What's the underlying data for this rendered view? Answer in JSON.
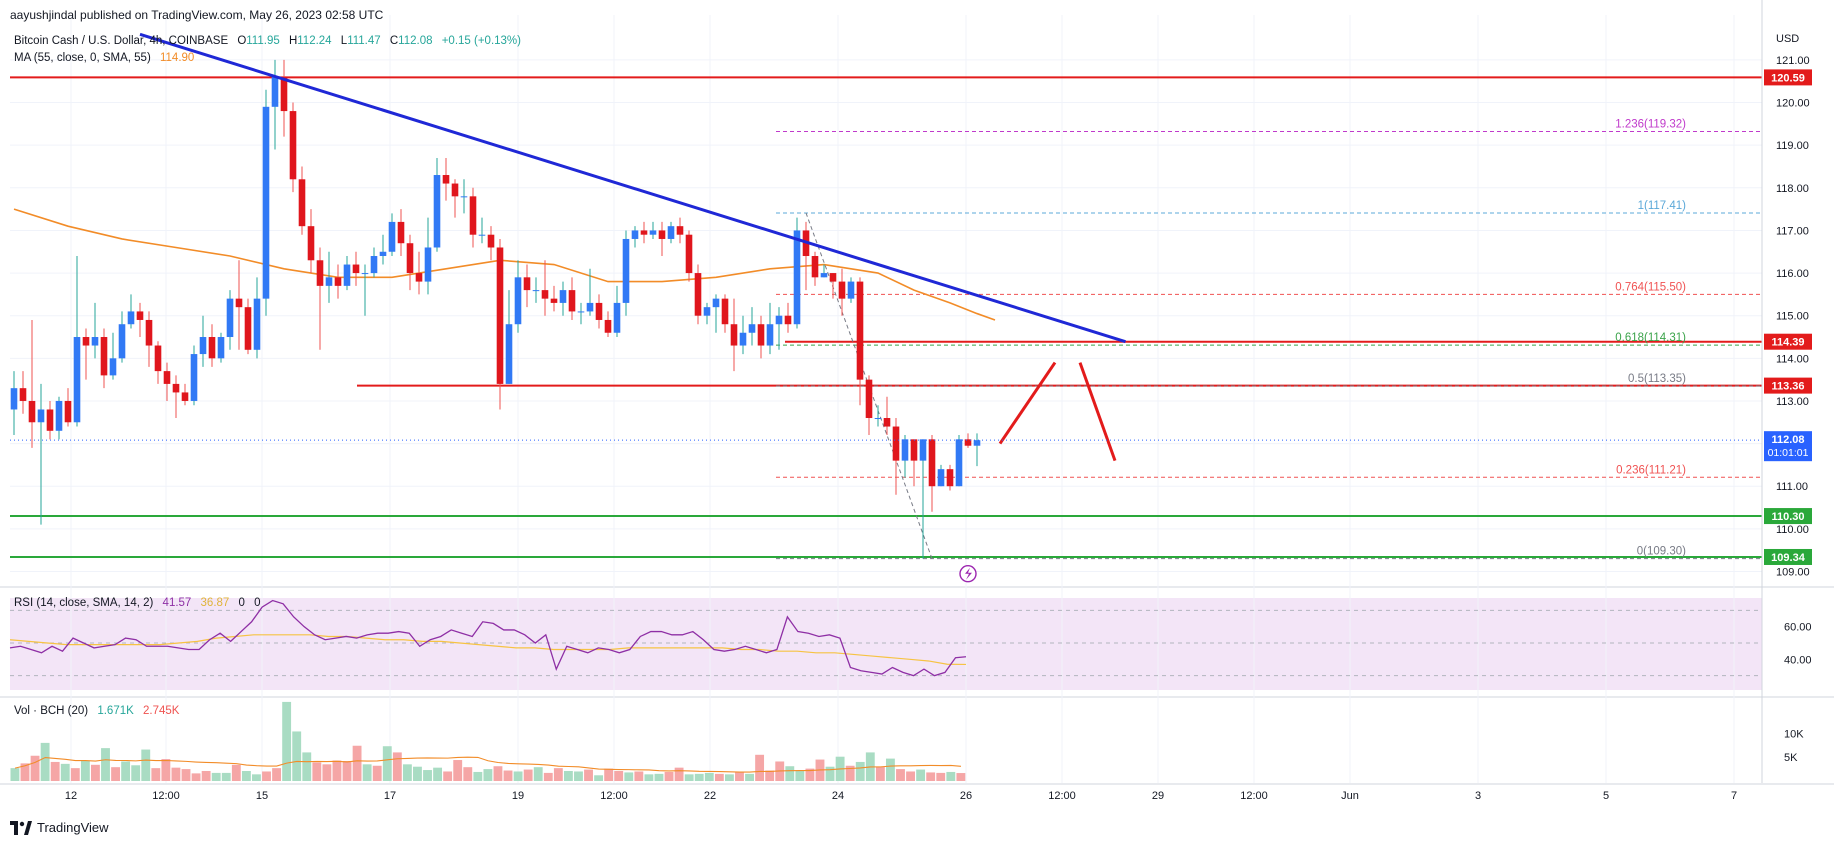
{
  "header": {
    "publisher": "aayushjindal published on TradingView.com, May 26, 2023 02:58 UTC",
    "symbol": "Bitcoin Cash / U.S. Dollar, 4h, COINBASE",
    "o_label": "O",
    "o": "111.95",
    "h_label": "H",
    "h": "112.24",
    "l_label": "L",
    "l": "111.47",
    "c_label": "C",
    "c": "112.08",
    "change": "+0.15 (+0.13%)",
    "ma_label": "MA (55, close, 0, SMA, 55)",
    "ma_value": "114.90"
  },
  "rsi": {
    "label": "RSI (14, close, SMA, 14, 2)",
    "value": "41.57",
    "ma_value": "36.87",
    "z1": "0",
    "z2": "0"
  },
  "volume": {
    "label": "Vol · BCH (20)",
    "value": "1.671K",
    "ma_value": "2.745K"
  },
  "footer": {
    "brand": "TradingView"
  },
  "colors": {
    "up": "#26a69a",
    "down": "#ef5350",
    "trend": "#1f28d6",
    "level_red": "#e31b1b",
    "level_green": "#2aa83a",
    "ma": "#f28c28",
    "rsi": "#8e2fa5",
    "rsi_ma": "#f6c343",
    "fib_red": "#f05252",
    "fib_blue": "#5ba8d8",
    "fib_purple": "#c03acb"
  },
  "chart_data": {
    "type": "candlestick",
    "currency_label": "USD",
    "y_ticks": [
      "121.00",
      "120.00",
      "119.00",
      "118.00",
      "117.00",
      "116.00",
      "115.00",
      "114.00",
      "113.00",
      "112.00",
      "111.00",
      "110.00",
      "109.00"
    ],
    "ylim": [
      108.8,
      121.35
    ],
    "x_ticks": [
      "12",
      "12:00",
      "15",
      "17",
      "19",
      "12:00",
      "22",
      "24",
      "26",
      "12:00",
      "29",
      "12:00",
      "Jun",
      "3",
      "5",
      "7"
    ],
    "price_labels": {
      "res1": "120.59",
      "res2": "114.39",
      "res3": "113.36",
      "last": "112.08",
      "countdown": "01:01:01",
      "sup1": "110.30",
      "sup2": "109.34"
    },
    "horizontal_levels": [
      {
        "name": "resistance-1",
        "value": 120.59,
        "color": "red"
      },
      {
        "name": "resistance-2",
        "value": 114.39,
        "color": "red"
      },
      {
        "name": "resistance-3",
        "value": 113.36,
        "color": "red"
      },
      {
        "name": "support-1",
        "value": 110.3,
        "color": "green"
      },
      {
        "name": "support-2",
        "value": 109.34,
        "color": "green"
      }
    ],
    "fib_levels": [
      {
        "label": "1.236(119.32)",
        "value": 119.32,
        "style": "purple"
      },
      {
        "label": "1(117.41)",
        "value": 117.41,
        "style": "blue"
      },
      {
        "label": "0.764(115.50)",
        "value": 115.5,
        "style": "red"
      },
      {
        "label": "0.618(114.31)",
        "value": 114.31,
        "style": "green"
      },
      {
        "label": "0.5(113.35)",
        "value": 113.35,
        "style": "gray"
      },
      {
        "label": "0.236(111.21)",
        "value": 111.21,
        "style": "red"
      },
      {
        "label": "0(109.30)",
        "value": 109.3,
        "style": "gray"
      }
    ],
    "trendline": {
      "from": [
        0,
        121.6
      ],
      "to": [
        123.5,
        114.39
      ]
    },
    "candles": [
      [
        112.8,
        113.3,
        113.7,
        112.2
      ],
      [
        113.3,
        113.0,
        113.7,
        112.7
      ],
      [
        113.0,
        112.5,
        114.9,
        111.9
      ],
      [
        112.5,
        112.8,
        113.4,
        110.1
      ],
      [
        112.8,
        112.3,
        113.0,
        112.1
      ],
      [
        112.3,
        113.0,
        113.1,
        112.1
      ],
      [
        113.0,
        112.5,
        113.3,
        112.4
      ],
      [
        112.5,
        114.5,
        116.4,
        112.4
      ],
      [
        114.5,
        114.3,
        114.7,
        113.5
      ],
      [
        114.3,
        114.5,
        115.3,
        114.0
      ],
      [
        114.5,
        113.6,
        114.7,
        113.3
      ],
      [
        113.6,
        114.0,
        114.6,
        113.5
      ],
      [
        114.0,
        114.8,
        115.1,
        113.9
      ],
      [
        114.8,
        115.1,
        115.5,
        114.7
      ],
      [
        115.1,
        114.9,
        115.3,
        114.5
      ],
      [
        114.9,
        114.3,
        115.1,
        113.8
      ],
      [
        114.3,
        113.7,
        114.4,
        113.4
      ],
      [
        113.7,
        113.4,
        113.9,
        113.0
      ],
      [
        113.4,
        113.2,
        113.6,
        112.6
      ],
      [
        113.2,
        113.0,
        113.4,
        112.9
      ],
      [
        113.0,
        114.1,
        114.3,
        112.9
      ],
      [
        114.1,
        114.5,
        115.0,
        113.8
      ],
      [
        114.5,
        114.0,
        114.8,
        113.8
      ],
      [
        114.0,
        114.5,
        114.6,
        113.9
      ],
      [
        114.5,
        115.4,
        115.6,
        114.2
      ],
      [
        115.4,
        115.2,
        116.3,
        114.2
      ],
      [
        115.2,
        114.2,
        115.4,
        114.1
      ],
      [
        114.2,
        115.4,
        115.9,
        114.0
      ],
      [
        115.4,
        119.9,
        120.3,
        115.0
      ],
      [
        119.9,
        120.6,
        121.0,
        118.9
      ],
      [
        120.6,
        119.8,
        121.0,
        119.2
      ],
      [
        119.8,
        118.2,
        120.0,
        117.9
      ],
      [
        118.2,
        117.1,
        118.5,
        116.9
      ],
      [
        117.1,
        116.3,
        117.5,
        116.0
      ],
      [
        116.3,
        115.7,
        116.6,
        114.2
      ],
      [
        115.7,
        115.9,
        116.5,
        115.3
      ],
      [
        115.9,
        115.7,
        116.2,
        115.4
      ],
      [
        115.7,
        116.2,
        116.4,
        115.6
      ],
      [
        116.2,
        116.0,
        116.5,
        115.7
      ],
      [
        116.0,
        116.0,
        116.2,
        115.0
      ],
      [
        116.0,
        116.4,
        116.6,
        115.9
      ],
      [
        116.4,
        116.5,
        116.9,
        116.2
      ],
      [
        116.5,
        117.2,
        117.4,
        116.4
      ],
      [
        117.2,
        116.7,
        117.5,
        116.4
      ],
      [
        116.7,
        116.0,
        116.9,
        115.6
      ],
      [
        116.0,
        115.8,
        116.5,
        115.5
      ],
      [
        115.8,
        116.6,
        117.3,
        115.5
      ],
      [
        116.6,
        118.3,
        118.7,
        116.5
      ],
      [
        118.3,
        118.1,
        118.7,
        117.7
      ],
      [
        118.1,
        117.8,
        118.2,
        117.3
      ],
      [
        117.8,
        117.8,
        118.2,
        117.4
      ],
      [
        117.8,
        116.9,
        118.0,
        116.6
      ],
      [
        116.9,
        116.9,
        117.3,
        116.7
      ],
      [
        116.9,
        116.6,
        117.1,
        116.3
      ],
      [
        116.6,
        113.4,
        116.8,
        112.8
      ],
      [
        113.4,
        114.8,
        115.6,
        113.4
      ],
      [
        114.8,
        115.9,
        116.3,
        114.6
      ],
      [
        115.9,
        115.6,
        116.2,
        115.2
      ],
      [
        115.6,
        115.6,
        115.9,
        115.3
      ],
      [
        115.6,
        115.4,
        116.3,
        115.0
      ],
      [
        115.4,
        115.3,
        115.7,
        115.1
      ],
      [
        115.3,
        115.6,
        115.8,
        115.0
      ],
      [
        115.6,
        115.1,
        115.9,
        114.9
      ],
      [
        115.1,
        115.1,
        115.3,
        114.8
      ],
      [
        115.1,
        115.3,
        116.1,
        115.0
      ],
      [
        115.3,
        114.9,
        115.5,
        114.7
      ],
      [
        114.9,
        114.6,
        115.1,
        114.5
      ],
      [
        114.6,
        115.3,
        115.7,
        114.5
      ],
      [
        115.3,
        116.8,
        117.0,
        115.0
      ],
      [
        116.8,
        117.0,
        117.1,
        116.6
      ],
      [
        117.0,
        116.9,
        117.2,
        116.7
      ],
      [
        116.9,
        117.0,
        117.2,
        116.8
      ],
      [
        117.0,
        116.8,
        117.2,
        116.4
      ],
      [
        116.8,
        117.1,
        117.2,
        116.7
      ],
      [
        117.1,
        116.9,
        117.3,
        116.7
      ],
      [
        116.9,
        116.0,
        117.0,
        115.8
      ],
      [
        116.0,
        115.0,
        116.2,
        114.8
      ],
      [
        115.0,
        115.2,
        115.3,
        114.8
      ],
      [
        115.2,
        115.4,
        115.5,
        114.6
      ],
      [
        115.4,
        114.8,
        115.5,
        114.6
      ],
      [
        114.8,
        114.3,
        115.4,
        113.7
      ],
      [
        114.3,
        114.6,
        115.0,
        114.1
      ],
      [
        114.6,
        114.8,
        115.2,
        114.3
      ],
      [
        114.8,
        114.3,
        115.0,
        114.0
      ],
      [
        114.3,
        114.8,
        115.3,
        114.1
      ],
      [
        114.8,
        115.0,
        115.2,
        114.2
      ],
      [
        115.0,
        114.8,
        115.3,
        114.6
      ],
      [
        114.8,
        117.0,
        117.3,
        114.7
      ],
      [
        117.0,
        116.4,
        117.2,
        115.6
      ],
      [
        116.4,
        115.9,
        116.5,
        115.7
      ],
      [
        115.9,
        116.0,
        116.2,
        115.9
      ],
      [
        116.0,
        115.8,
        116.0,
        115.4
      ],
      [
        115.8,
        115.4,
        116.1,
        115.0
      ],
      [
        115.4,
        115.8,
        115.9,
        115.3
      ],
      [
        115.8,
        113.5,
        115.9,
        112.9
      ],
      [
        113.5,
        112.6,
        113.6,
        112.2
      ],
      [
        112.6,
        112.6,
        112.9,
        112.4
      ],
      [
        112.6,
        112.4,
        113.1,
        112.2
      ],
      [
        112.4,
        111.6,
        112.6,
        110.8
      ],
      [
        111.6,
        112.1,
        112.2,
        111.2
      ],
      [
        112.1,
        111.6,
        112.1,
        111.0
      ],
      [
        111.6,
        112.1,
        112.1,
        109.3
      ],
      [
        112.1,
        111.0,
        112.2,
        110.4
      ],
      [
        111.0,
        111.4,
        111.5,
        111.0
      ],
      [
        111.4,
        111.0,
        111.5,
        110.9
      ],
      [
        111.0,
        112.1,
        112.2,
        111.0
      ],
      [
        112.1,
        111.95,
        112.24,
        111.9
      ],
      [
        111.95,
        112.08,
        112.24,
        111.47
      ]
    ],
    "ma55": [
      [
        0,
        117.5
      ],
      [
        6,
        117.1
      ],
      [
        12,
        116.8
      ],
      [
        18,
        116.6
      ],
      [
        24,
        116.4
      ],
      [
        30,
        116.1
      ],
      [
        36,
        115.9
      ],
      [
        42,
        115.9
      ],
      [
        48,
        116.1
      ],
      [
        54,
        116.3
      ],
      [
        60,
        116.2
      ],
      [
        66,
        115.8
      ],
      [
        72,
        115.8
      ],
      [
        78,
        115.9
      ],
      [
        84,
        116.1
      ],
      [
        90,
        116.2
      ],
      [
        96,
        116.0
      ],
      [
        100,
        115.6
      ],
      [
        104,
        115.3
      ],
      [
        107,
        115.05
      ],
      [
        109,
        114.9
      ]
    ],
    "rsi_ylabels": [
      "60.00",
      "40.00"
    ],
    "rsi_range": [
      0,
      100
    ],
    "rsi_values": [
      47,
      48,
      46,
      44,
      48,
      45,
      53,
      50,
      47,
      48,
      49,
      53,
      52,
      48,
      48,
      48,
      47,
      46,
      46,
      52,
      56,
      51,
      57,
      63,
      72,
      76,
      74,
      66,
      60,
      55,
      52,
      53,
      54,
      53,
      55,
      56,
      56,
      57,
      56,
      48,
      52,
      54,
      58,
      56,
      54,
      63,
      62,
      58,
      58,
      55,
      50,
      55,
      34,
      48,
      46,
      44,
      47,
      46,
      44,
      46,
      54,
      57,
      57,
      55,
      55,
      57,
      52,
      46,
      45,
      46,
      48,
      46,
      44,
      46,
      66,
      57,
      56,
      54,
      55,
      53,
      35,
      33,
      32,
      31,
      35,
      32,
      30,
      34,
      30,
      32,
      41,
      41.57
    ],
    "rsi_ma": [
      52,
      51,
      50,
      49,
      49,
      49,
      49,
      49,
      49,
      50,
      51,
      53,
      54,
      55,
      55,
      55,
      55,
      54,
      54,
      53,
      52,
      52,
      51,
      51,
      50,
      49,
      48,
      47,
      47,
      46,
      46,
      46,
      46,
      47,
      47,
      47,
      47,
      47,
      47,
      46,
      46,
      45,
      45,
      44,
      44,
      43,
      42,
      41,
      40,
      39,
      37,
      36.87
    ],
    "vol_ylabels": [
      "10K",
      "5K"
    ],
    "vol_max": 17000,
    "volumes": [
      2.7,
      3.7,
      5.3,
      8.0,
      4.0,
      3.6,
      2.7,
      4.3,
      3.4,
      6.9,
      2.9,
      4.1,
      3.3,
      6.6,
      2.7,
      4.6,
      2.8,
      2.5,
      1.6,
      2.1,
      1.7,
      1.7,
      3.4,
      2.1,
      1.4,
      2.0,
      2.7,
      16.6,
      10.4,
      6.0,
      3.9,
      3.5,
      4.3,
      4.2,
      7.4,
      3.5,
      3.2,
      7.3,
      6.0,
      3.5,
      3.0,
      2.3,
      2.8,
      2.0,
      4.4,
      2.9,
      1.9,
      2.5,
      3.1,
      2.2,
      2.0,
      2.4,
      2.9,
      1.7,
      2.7,
      2.1,
      2.0,
      2.4,
      1.2,
      2.6,
      2.1,
      1.8,
      2.0,
      1.4,
      1.5,
      1.9,
      2.8,
      1.4,
      1.5,
      1.7,
      1.5,
      1.4,
      1.9,
      1.5,
      5.5,
      2.2,
      4.1,
      3.1,
      2.1,
      2.6,
      4.5,
      3.0,
      5.1,
      3.2,
      4.0,
      6.0,
      3.0,
      4.7,
      2.5,
      2.0,
      2.4,
      1.8,
      1.7,
      1.9,
      1.67
    ]
  }
}
